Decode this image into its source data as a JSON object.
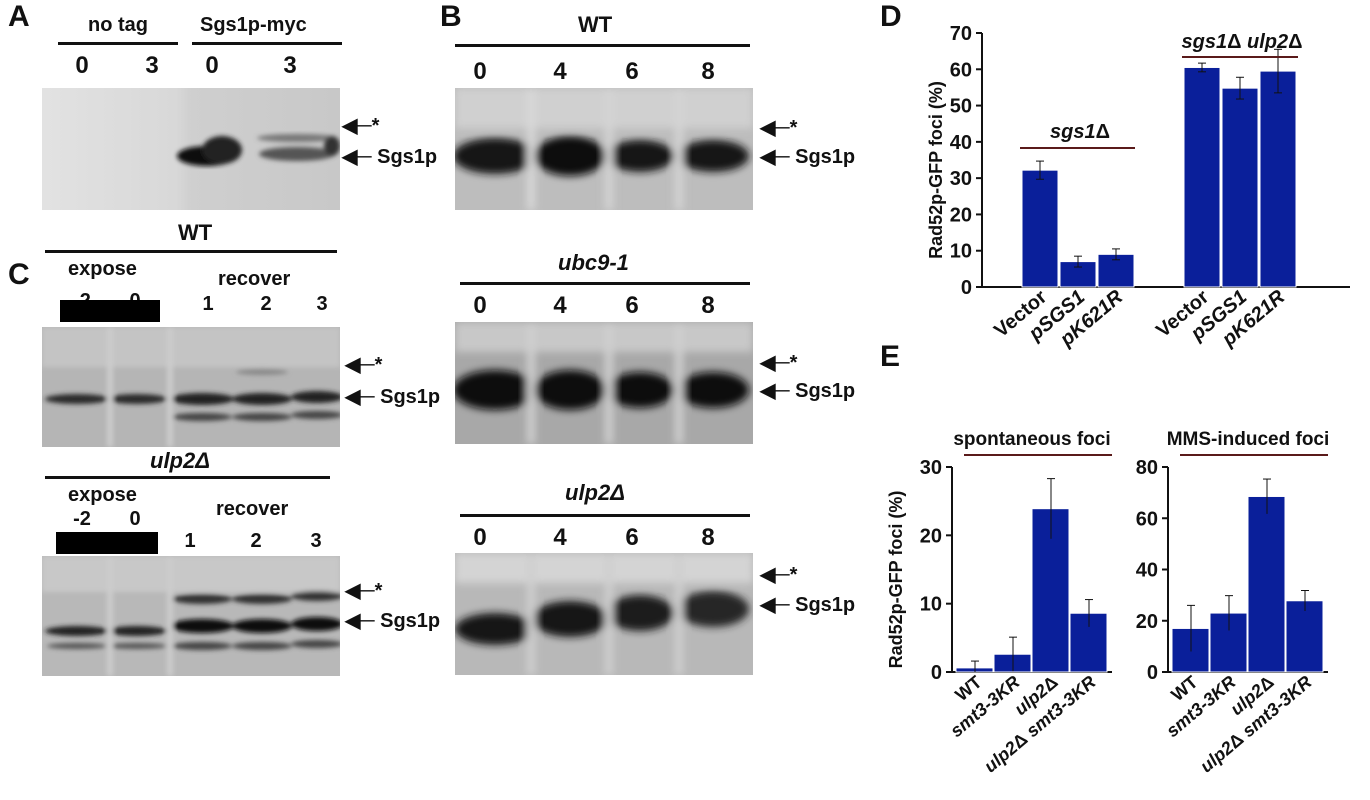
{
  "panel_letters": [
    "A",
    "B",
    "C",
    "D",
    "E"
  ],
  "panel_A": {
    "groups": [
      "no tag",
      "Sgs1p-myc"
    ],
    "lanes": [
      "0",
      "3",
      "0",
      "3"
    ],
    "arrows": [
      "*",
      "Sgs1p"
    ]
  },
  "panel_B": {
    "blots": [
      {
        "strain": "WT",
        "lanes": [
          "0",
          "4",
          "6",
          "8"
        ]
      },
      {
        "strain": "ubc9-1",
        "lanes": [
          "0",
          "4",
          "6",
          "8"
        ]
      },
      {
        "strain": "ulp2Δ",
        "lanes": [
          "0",
          "4",
          "6",
          "8"
        ]
      }
    ],
    "arrows": [
      "*",
      "Sgs1p"
    ]
  },
  "panel_C": {
    "blots": [
      {
        "strain": "WT",
        "expose_label": "expose",
        "expose_lanes": [
          "-2",
          "0"
        ],
        "recover_label": "recover",
        "recover_lanes": [
          "1",
          "2",
          "3"
        ]
      },
      {
        "strain": "ulp2Δ",
        "expose_label": "expose",
        "expose_lanes": [
          "-2",
          "0"
        ],
        "recover_label": "recover",
        "recover_lanes": [
          "1",
          "2",
          "3"
        ]
      }
    ],
    "arrows": [
      "*",
      "Sgs1p"
    ]
  },
  "bar_color": "#0a1f9a",
  "bracket_color": "#5a1a1a",
  "chart_data": [
    {
      "type": "bar",
      "panel": "D",
      "ylabel": "Rad52p-GFP foci (%)",
      "ylim": [
        0,
        70
      ],
      "yticks": [
        0,
        10,
        20,
        30,
        40,
        50,
        60,
        70
      ],
      "groups": [
        {
          "label": "sgs1Δ",
          "categories": [
            "Vector",
            "pSGS1",
            "pK621R"
          ],
          "values": [
            32.2,
            7.0,
            9.0
          ],
          "errors": [
            2.5,
            1.5,
            1.5
          ]
        },
        {
          "label": "sgs1Δ ulp2Δ",
          "categories": [
            "Vector",
            "pSGS1",
            "pK621R"
          ],
          "values": [
            60.5,
            54.8,
            59.5
          ],
          "errors": [
            1.2,
            3.0,
            6.0
          ]
        }
      ]
    },
    {
      "type": "bar",
      "panel": "E",
      "title": "spontaneous foci",
      "ylabel": "Rad52p-GFP foci (%)",
      "ylim": [
        0,
        30
      ],
      "yticks": [
        0,
        10,
        20,
        30
      ],
      "categories": [
        "WT",
        "smt3-3KR",
        "ulp2Δ",
        "ulp2Δ smt3-3KR"
      ],
      "values": [
        0.6,
        2.6,
        23.9,
        8.6
      ],
      "errors": [
        1.0,
        2.5,
        4.4,
        2.0
      ]
    },
    {
      "type": "bar",
      "panel": "E",
      "title": "MMS-induced foci",
      "ylim": [
        0,
        80
      ],
      "yticks": [
        0,
        20,
        40,
        60,
        80
      ],
      "categories": [
        "WT",
        "smt3-3KR",
        "ulp2Δ",
        "ulp2Δ smt3-3KR"
      ],
      "values": [
        17.0,
        23.0,
        68.5,
        27.8
      ],
      "errors": [
        9.0,
        6.8,
        6.8,
        4.0
      ]
    }
  ]
}
